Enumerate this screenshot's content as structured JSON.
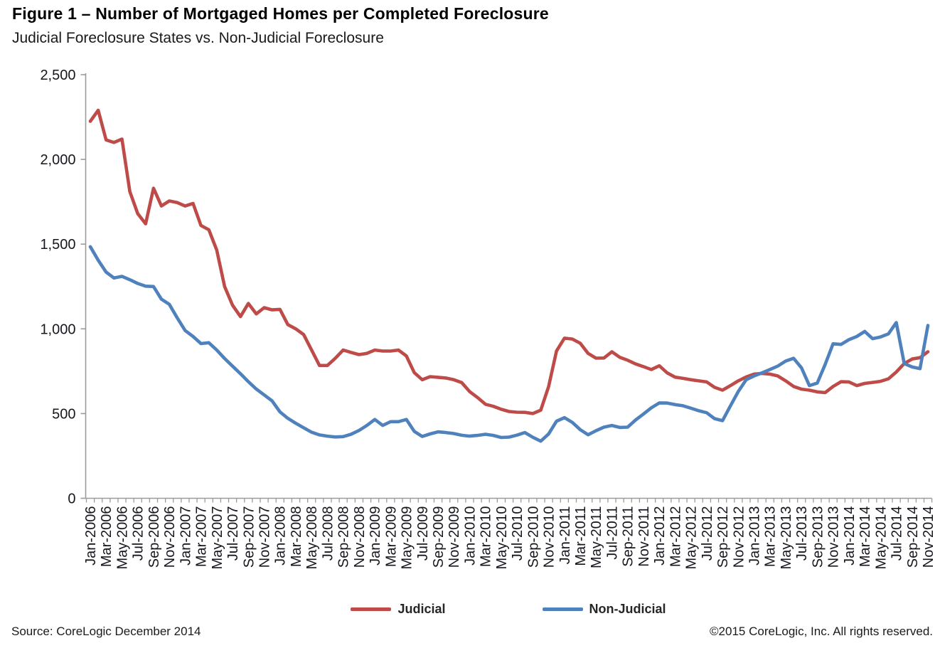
{
  "header": {
    "title": "Figure 1 – Number of Mortgaged Homes per Completed Foreclosure",
    "subtitle": "Judicial Foreclosure States vs. Non-Judicial Foreclosure"
  },
  "footer": {
    "source": "Source: CoreLogic December 2014",
    "copyright": "©2015 CoreLogic, Inc. All rights reserved."
  },
  "chart_data": {
    "type": "line",
    "title": "Figure 1 – Number of Mortgaged Homes per Completed Foreclosure",
    "subtitle": "Judicial Foreclosure States vs. Non-Judicial Foreclosure",
    "xlabel": "",
    "ylabel": "",
    "ylim": [
      0,
      2500
    ],
    "ytick_step": 500,
    "y_tick_labels": [
      "0",
      "500",
      "1,000",
      "1,500",
      "2,000",
      "2,500"
    ],
    "grid": false,
    "legend_position": "bottom",
    "x_label_every": 2,
    "x": [
      "Jan-2006",
      "Feb-2006",
      "Mar-2006",
      "Apr-2006",
      "May-2006",
      "Jun-2006",
      "Jul-2006",
      "Aug-2006",
      "Sep-2006",
      "Oct-2006",
      "Nov-2006",
      "Dec-2006",
      "Jan-2007",
      "Feb-2007",
      "Mar-2007",
      "Apr-2007",
      "May-2007",
      "Jun-2007",
      "Jul-2007",
      "Aug-2007",
      "Sep-2007",
      "Oct-2007",
      "Nov-2007",
      "Dec-2007",
      "Jan-2008",
      "Feb-2008",
      "Mar-2008",
      "Apr-2008",
      "May-2008",
      "Jun-2008",
      "Jul-2008",
      "Aug-2008",
      "Sep-2008",
      "Oct-2008",
      "Nov-2008",
      "Dec-2008",
      "Jan-2009",
      "Feb-2009",
      "Mar-2009",
      "Apr-2009",
      "May-2009",
      "Jun-2009",
      "Jul-2009",
      "Aug-2009",
      "Sep-2009",
      "Oct-2009",
      "Nov-2009",
      "Dec-2009",
      "Jan-2010",
      "Feb-2010",
      "Mar-2010",
      "Apr-2010",
      "May-2010",
      "Jun-2010",
      "Jul-2010",
      "Aug-2010",
      "Sep-2010",
      "Oct-2010",
      "Nov-2010",
      "Dec-2010",
      "Jan-2011",
      "Feb-2011",
      "Mar-2011",
      "Apr-2011",
      "May-2011",
      "Jun-2011",
      "Jul-2011",
      "Aug-2011",
      "Sep-2011",
      "Oct-2011",
      "Nov-2011",
      "Dec-2011",
      "Jan-2012",
      "Feb-2012",
      "Mar-2012",
      "Apr-2012",
      "May-2012",
      "Jun-2012",
      "Jul-2012",
      "Aug-2012",
      "Sep-2012",
      "Oct-2012",
      "Nov-2012",
      "Dec-2012",
      "Jan-2013",
      "Feb-2013",
      "Mar-2013",
      "Apr-2013",
      "May-2013",
      "Jun-2013",
      "Jul-2013",
      "Aug-2013",
      "Sep-2013",
      "Oct-2013",
      "Nov-2013",
      "Dec-2013",
      "Jan-2014",
      "Feb-2014",
      "Mar-2014",
      "Apr-2014",
      "May-2014",
      "Jun-2014",
      "Jul-2014",
      "Aug-2014",
      "Sep-2014",
      "Oct-2014",
      "Nov-2014"
    ],
    "series": [
      {
        "name": "Judicial",
        "color": "#BE4B48",
        "values": [
          2225,
          2290,
          2115,
          2100,
          2120,
          1810,
          1680,
          1620,
          1830,
          1725,
          1755,
          1745,
          1725,
          1740,
          1610,
          1585,
          1465,
          1250,
          1140,
          1072,
          1150,
          1088,
          1125,
          1112,
          1115,
          1025,
          1000,
          966,
          875,
          784,
          784,
          826,
          875,
          861,
          848,
          855,
          875,
          869,
          869,
          875,
          840,
          742,
          700,
          718,
          714,
          710,
          700,
          683,
          630,
          595,
          555,
          543,
          525,
          512,
          508,
          507,
          500,
          520,
          660,
          870,
          945,
          940,
          915,
          855,
          827,
          828,
          865,
          832,
          815,
          793,
          777,
          760,
          782,
          740,
          715,
          708,
          700,
          693,
          687,
          655,
          638,
          665,
          693,
          716,
          733,
          737,
          733,
          722,
          693,
          660,
          644,
          638,
          628,
          624,
          660,
          688,
          687,
          665,
          678,
          684,
          690,
          705,
          745,
          795,
          822,
          830,
          865
        ]
      },
      {
        "name": "Non-Judicial",
        "color": "#4F81BD",
        "values": [
          1485,
          1405,
          1335,
          1300,
          1310,
          1290,
          1268,
          1252,
          1250,
          1175,
          1145,
          1065,
          990,
          955,
          913,
          918,
          875,
          825,
          780,
          735,
          688,
          645,
          610,
          575,
          510,
          472,
          443,
          416,
          390,
          374,
          367,
          362,
          364,
          378,
          400,
          430,
          465,
          430,
          452,
          452,
          465,
          395,
          365,
          380,
          392,
          388,
          382,
          372,
          367,
          371,
          378,
          371,
          359,
          361,
          373,
          388,
          360,
          337,
          380,
          455,
          476,
          448,
          405,
          375,
          399,
          420,
          430,
          418,
          420,
          462,
          497,
          534,
          563,
          562,
          553,
          546,
          532,
          517,
          505,
          470,
          458,
          545,
          630,
          700,
          722,
          740,
          760,
          780,
          810,
          826,
          770,
          665,
          680,
          790,
          912,
          908,
          936,
          955,
          985,
          942,
          952,
          970,
          1037,
          795,
          775,
          765,
          1020
        ]
      }
    ],
    "axis_color": "#9b9b9b",
    "tick_label_color": "#16161f"
  }
}
